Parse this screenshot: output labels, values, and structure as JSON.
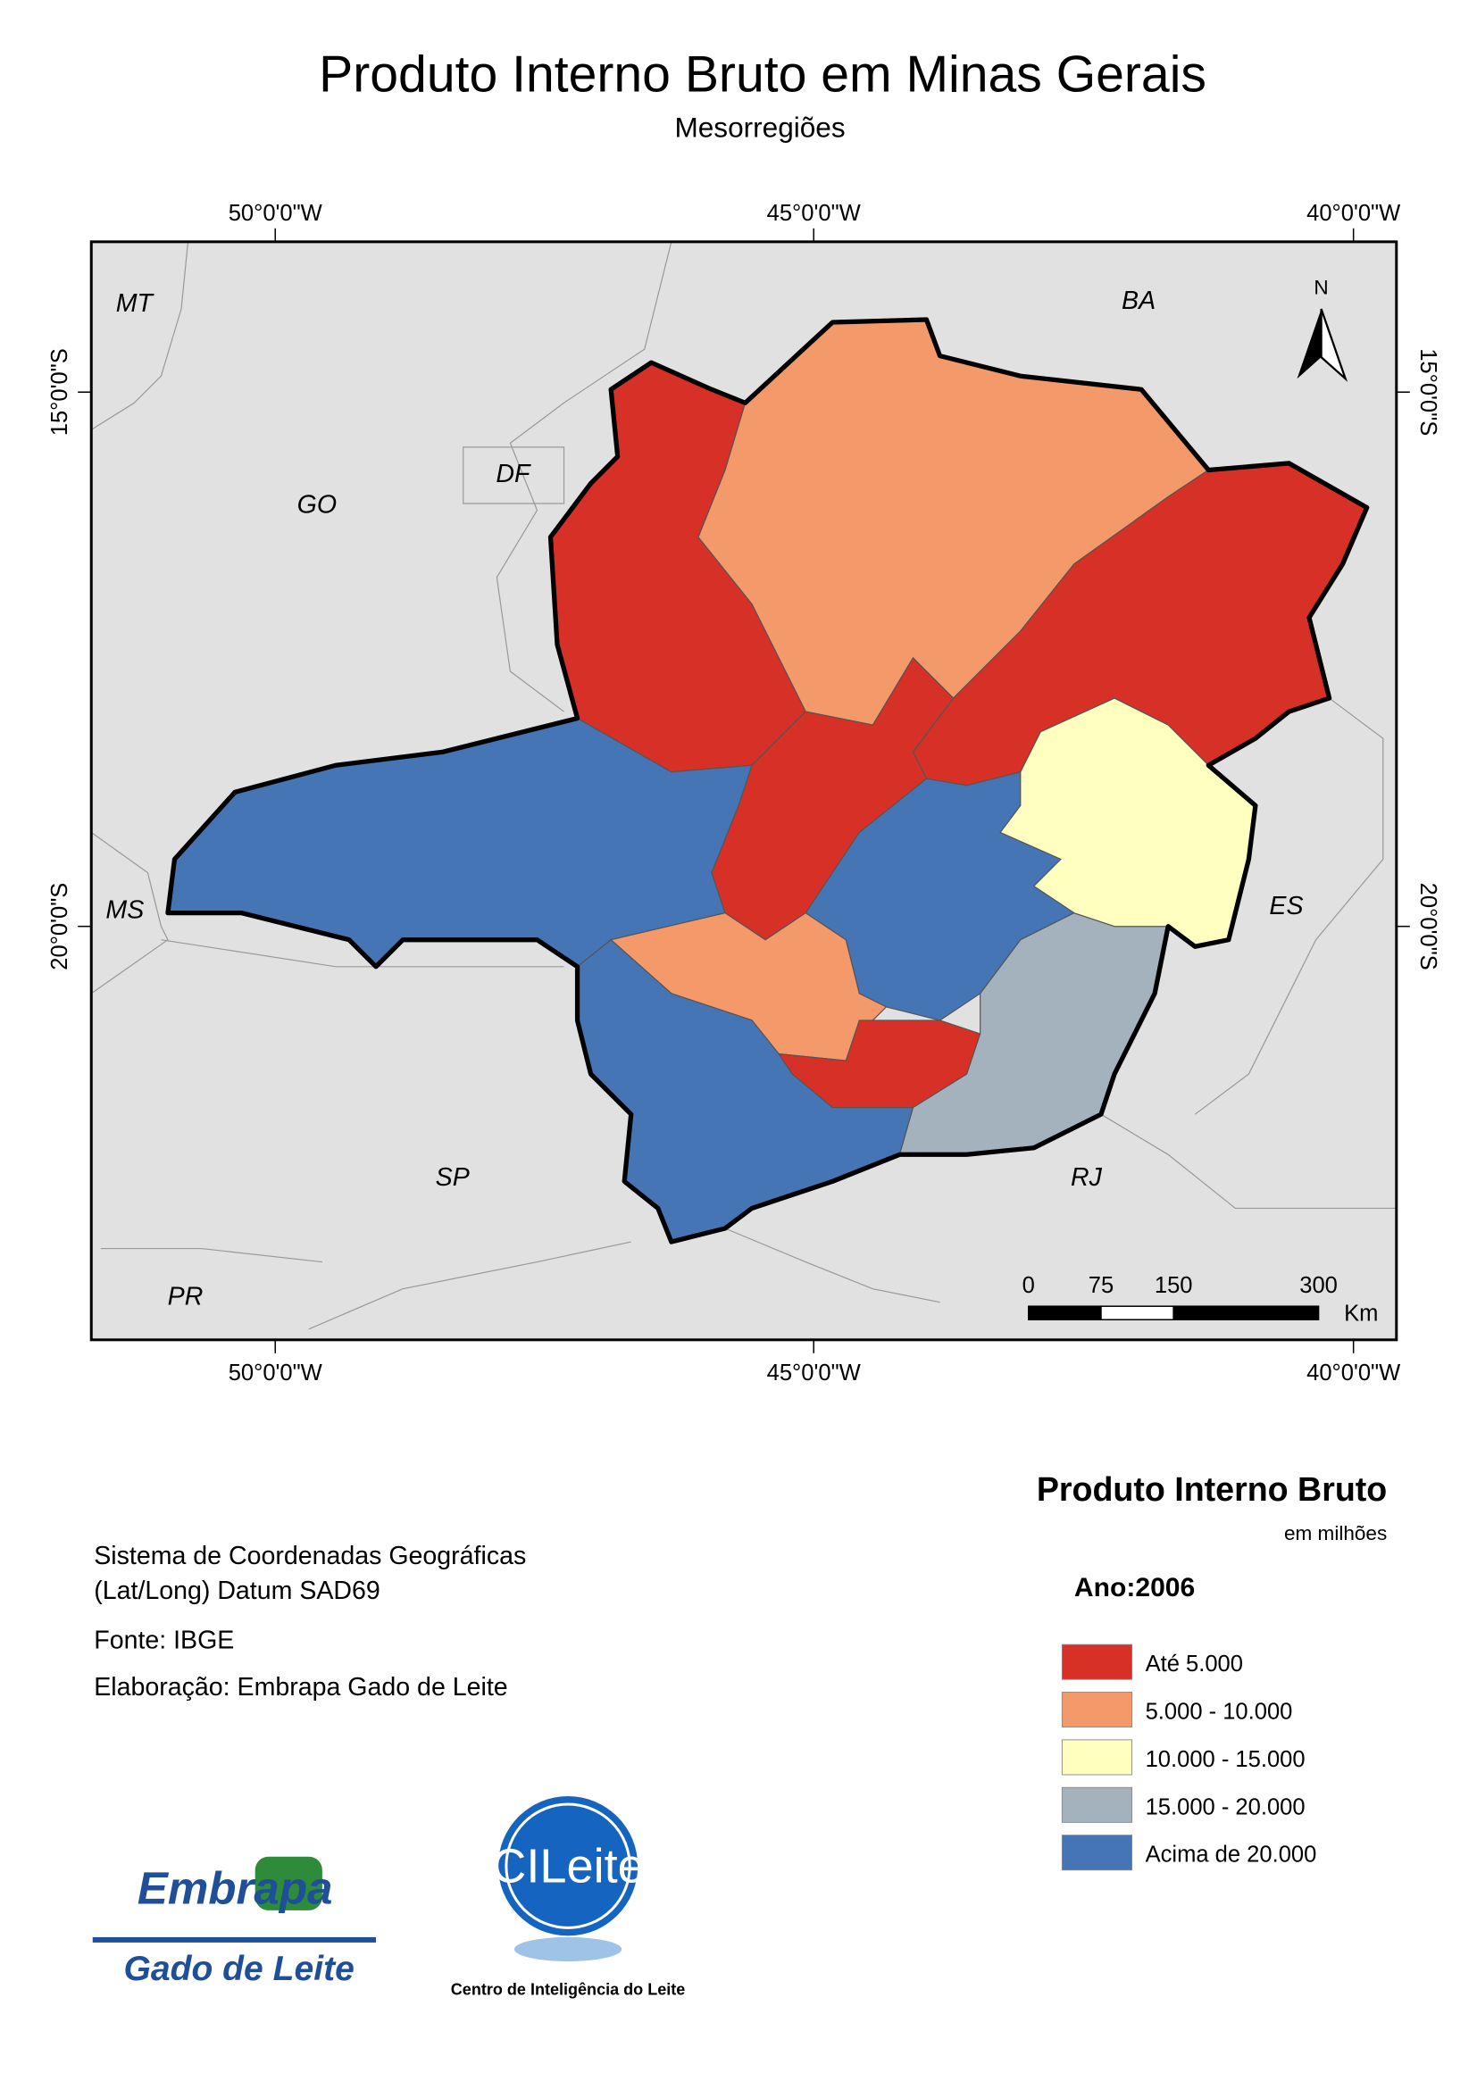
{
  "title": "Produto Interno Bruto em Minas Gerais",
  "subtitle": "Mesorregiões",
  "coordinates": {
    "top": [
      "50°0'0\"W",
      "45°0'0\"W",
      "40°0'0\"W"
    ],
    "bottom": [
      "50°0'0\"W",
      "45°0'0\"W",
      "40°0'0\"W"
    ],
    "left": [
      "15°0'0\"S",
      "20°0'0\"S"
    ],
    "right": [
      "15°0'0\"S",
      "20°0'0\"S"
    ]
  },
  "states": [
    "MT",
    "BA",
    "DF",
    "GO",
    "MS",
    "ES",
    "SP",
    "RJ",
    "PR"
  ],
  "north_arrow": "N",
  "scale_bar": {
    "ticks": [
      0,
      75,
      150,
      300
    ],
    "unit": "Km"
  },
  "notes": [
    "Sistema de Coordenadas Geográficas",
    "(Lat/Long) Datum SAD69",
    "Fonte: IBGE",
    "Elaboração: Embrapa Gado de Leite"
  ],
  "legend": {
    "title": "Produto Interno Bruto",
    "subtitle": "em milhões",
    "year": "Ano:2006",
    "items": [
      {
        "label": "Até 5.000",
        "color": "#d73027"
      },
      {
        "label": "5.000 - 10.000",
        "color": "#f4996a"
      },
      {
        "label": "10.000 - 15.000",
        "color": "#ffffbf"
      },
      {
        "label": "15.000 - 20.000",
        "color": "#a3b2bc"
      },
      {
        "label": "Acima de 20.000",
        "color": "#4575b4"
      }
    ]
  },
  "logos": {
    "embrapa": "Embrapa",
    "embrapa_sub": "Gado de Leite",
    "cileite": "CILeite",
    "cileite_sub": "Centro de Inteligência do Leite"
  }
}
